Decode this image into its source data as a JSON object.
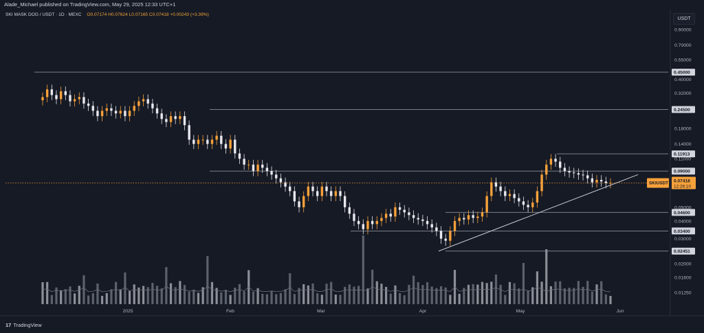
{
  "header": {
    "published": "Alade_Michael published on TradingView.com, May 29, 2025 12:33 UTC+1"
  },
  "legend": {
    "symbol": "SKI MASK DOG / USDT · 1D · MEXC",
    "ohlc": "O0.07174 H0.07624 L0.07165 C0.07418 +0.00243 (+3.39%)"
  },
  "unit_button": "USDT",
  "brand": {
    "logo": "17",
    "name": "TradingView"
  },
  "colors": {
    "up": "#f7a13a",
    "down": "#e8e8ee",
    "background": "#161a25",
    "level_line": "#8a8e99",
    "trendline": "#c8cad2",
    "current_price": "#f7a13a"
  },
  "chart_data": {
    "type": "candlestick",
    "scale": "log",
    "y_ticks": [
      "0.90000",
      "0.70000",
      "0.55000",
      "0.40000",
      "0.32000",
      "0.18000",
      "0.14000",
      "0.11000",
      "0.05000",
      "0.04000",
      "0.03000",
      "0.02000",
      "0.01600",
      "0.01250"
    ],
    "x_ticks": [
      "2025",
      "Feb",
      "Mar",
      "Apr",
      "May",
      "Jun"
    ],
    "levels": [
      {
        "label": "0.45000",
        "value": 0.45,
        "from": "Dec 2024",
        "to": "Jun 2025"
      },
      {
        "label": "0.24500",
        "value": 0.245,
        "from": "Feb 2025",
        "to": "Jun 2025"
      },
      {
        "label": "0.11913",
        "value": 0.11913,
        "from": "May 2025",
        "to": "Jun 2025"
      },
      {
        "label": "0.09000",
        "value": 0.09,
        "from": "Feb 2025",
        "to": "Jun 2025"
      },
      {
        "label": "0.04600",
        "value": 0.046,
        "from": "Apr 2025",
        "to": "Jun 2025"
      },
      {
        "label": "0.03400",
        "value": 0.034,
        "from": "Mar 2025",
        "to": "Jun 2025"
      },
      {
        "label": "0.02451",
        "value": 0.02451,
        "from": "Apr 2025",
        "to": "Jun 2025"
      }
    ],
    "current_price": {
      "symbol": "SKIUSDT",
      "value": "0.07418",
      "countdown": "12:26:10"
    },
    "trendline": {
      "from": [
        "Apr 2025",
        0.0245
      ],
      "to": [
        "Jun 2025",
        0.082
      ]
    },
    "candles_close": [
      0.3,
      0.34,
      0.31,
      0.29,
      0.33,
      0.31,
      0.28,
      0.29,
      0.3,
      0.27,
      0.26,
      0.24,
      0.22,
      0.24,
      0.25,
      0.24,
      0.23,
      0.24,
      0.22,
      0.24,
      0.26,
      0.28,
      0.29,
      0.27,
      0.25,
      0.23,
      0.21,
      0.2,
      0.22,
      0.21,
      0.22,
      0.19,
      0.15,
      0.14,
      0.15,
      0.15,
      0.14,
      0.15,
      0.16,
      0.14,
      0.13,
      0.15,
      0.12,
      0.11,
      0.1,
      0.1,
      0.09,
      0.1,
      0.095,
      0.09,
      0.085,
      0.08,
      0.075,
      0.07,
      0.065,
      0.055,
      0.05,
      0.06,
      0.07,
      0.065,
      0.06,
      0.07,
      0.065,
      0.06,
      0.065,
      0.06,
      0.05,
      0.045,
      0.04,
      0.038,
      0.035,
      0.04,
      0.038,
      0.04,
      0.042,
      0.045,
      0.043,
      0.05,
      0.048,
      0.046,
      0.044,
      0.042,
      0.041,
      0.04,
      0.038,
      0.036,
      0.034,
      0.03,
      0.029,
      0.034,
      0.04,
      0.042,
      0.041,
      0.044,
      0.042,
      0.043,
      0.046,
      0.06,
      0.075,
      0.07,
      0.065,
      0.06,
      0.062,
      0.058,
      0.055,
      0.052,
      0.05,
      0.054,
      0.065,
      0.085,
      0.1,
      0.11,
      0.105,
      0.095,
      0.09,
      0.088,
      0.087,
      0.085,
      0.084,
      0.08,
      0.075,
      0.078,
      0.076,
      0.074,
      0.07418
    ],
    "volume_note": "bars shown beneath price with moving average"
  }
}
